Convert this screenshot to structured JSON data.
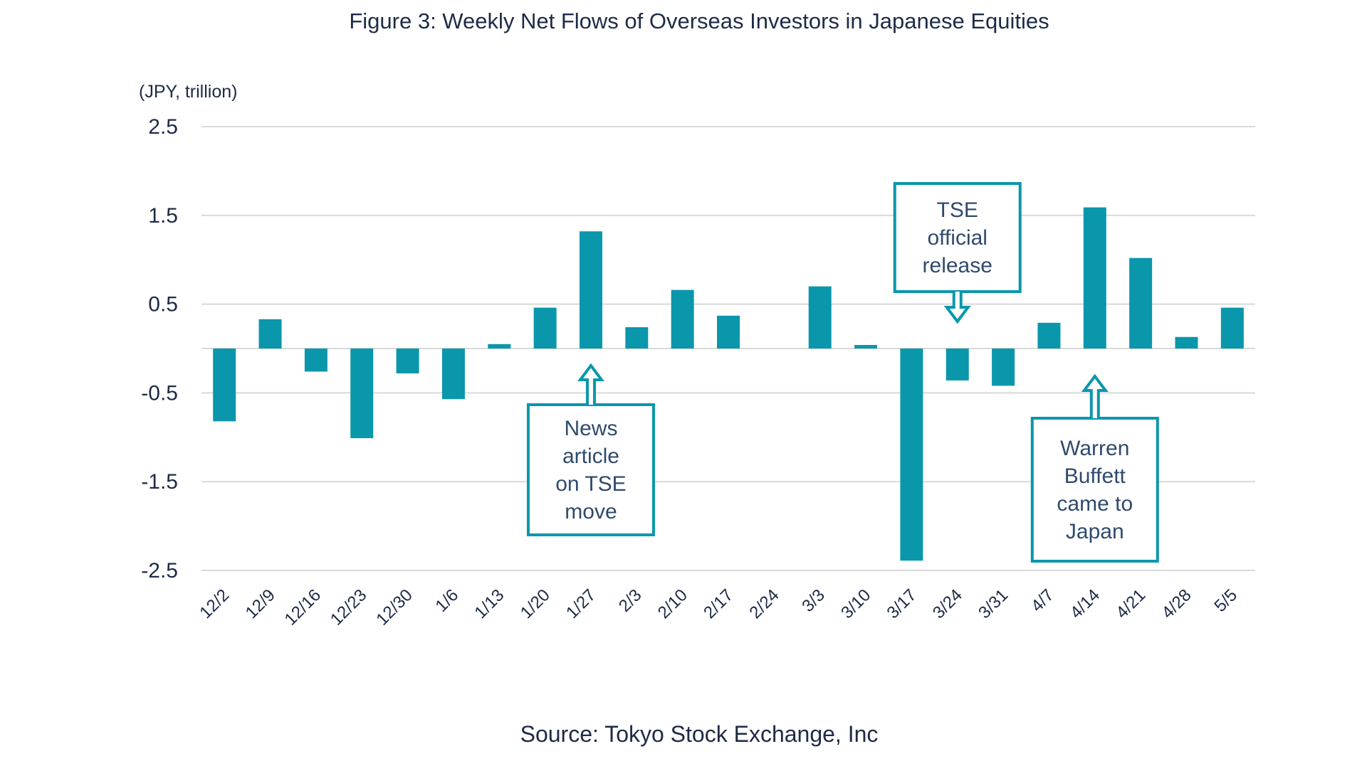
{
  "chart_data": {
    "type": "bar",
    "title": "Figure 3: Weekly Net Flows of Overseas Investors in Japanese Equities",
    "ylabel": "(JPY, trillion)",
    "xlabel": "",
    "ylim": [
      -2.5,
      2.5
    ],
    "yticks": [
      "2.5",
      "1.5",
      "0.5",
      "-0.5",
      "-1.5",
      "-2.5"
    ],
    "grid": true,
    "categories": [
      "12/2",
      "12/9",
      "12/16",
      "12/23",
      "12/30",
      "1/6",
      "1/13",
      "1/20",
      "1/27",
      "2/3",
      "2/10",
      "2/17",
      "2/24",
      "3/3",
      "3/10",
      "3/17",
      "3/24",
      "3/31",
      "4/7",
      "4/14",
      "4/21",
      "4/28",
      "5/5"
    ],
    "values": [
      -0.82,
      0.33,
      -0.26,
      -1.01,
      -0.28,
      -0.57,
      0.05,
      0.46,
      1.32,
      0.24,
      0.66,
      0.37,
      0,
      0.7,
      0.04,
      -2.39,
      -0.36,
      -0.42,
      0.29,
      1.59,
      1.02,
      0.13,
      0.46
    ],
    "bar_color": "#0a97ac",
    "annotations": [
      {
        "lines": [
          "News",
          "article",
          "on TSE",
          "move"
        ],
        "category": "1/27",
        "arrow": "up"
      },
      {
        "lines": [
          "TSE",
          "official",
          "release"
        ],
        "category": "3/24",
        "arrow": "down"
      },
      {
        "lines": [
          "Warren",
          "Buffett",
          "came to",
          "Japan"
        ],
        "category": "4/14",
        "arrow": "up"
      }
    ],
    "source": "Source: Tokyo Stock Exchange, Inc"
  },
  "colors": {
    "text": "#1e2b47",
    "annotation_text": "#2f4a6d",
    "grid": "#d9d9d9"
  }
}
